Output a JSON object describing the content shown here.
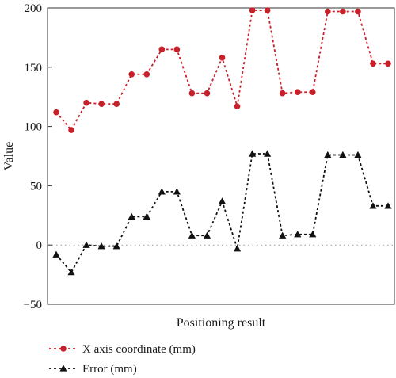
{
  "chart_data": {
    "type": "line",
    "ylabel": "Value",
    "xlabel": "Positioning result",
    "ylim": [
      -50,
      200
    ],
    "yticks": [
      -50,
      0,
      50,
      100,
      150,
      200
    ],
    "x": [
      1,
      2,
      3,
      4,
      5,
      6,
      7,
      8,
      9,
      10,
      11,
      12,
      13,
      14,
      15,
      16,
      17,
      18,
      19,
      20,
      21,
      22,
      23
    ],
    "zero_line": "dotted",
    "legend_position": "bottom-left",
    "series": [
      {
        "name": "X axis coordinate (mm)",
        "color": "#c8202a",
        "marker": "circle",
        "line_style": "dashed",
        "values": [
          112,
          97,
          120,
          119,
          119,
          144,
          144,
          165,
          165,
          128,
          128,
          158,
          117,
          198,
          198,
          128,
          129,
          129,
          197,
          197,
          197,
          153,
          153
        ]
      },
      {
        "name": "Error (mm)",
        "color": "#111111",
        "marker": "triangle",
        "line_style": "dashed",
        "values": [
          -8,
          -23,
          0,
          -1,
          -1,
          24,
          24,
          45,
          45,
          8,
          8,
          37,
          -3,
          77,
          77,
          8,
          9,
          9,
          76,
          76,
          76,
          33,
          33
        ]
      }
    ]
  }
}
